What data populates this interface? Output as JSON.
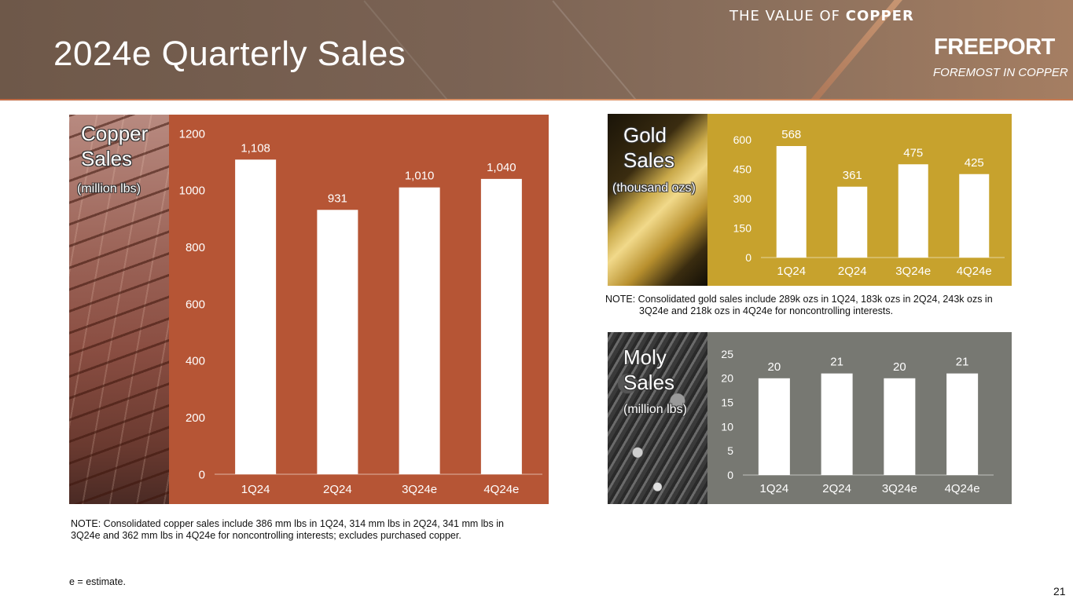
{
  "header": {
    "title": "2024e Quarterly Sales",
    "tagline_light": "THE VALUE OF ",
    "tagline_bold": "COPPER",
    "brand": "FREEPORT",
    "brand_sub": "FOREMOST IN COPPER"
  },
  "copper": {
    "label_line1": "Copper",
    "label_line2": "Sales",
    "unit": "(million lbs)",
    "note": "NOTE: Consolidated copper sales include 386 mm lbs in 1Q24, 314 mm lbs in 2Q24, 341 mm lbs in 3Q24e and 362 mm lbs in 4Q24e for noncontrolling interests; excludes purchased copper."
  },
  "gold": {
    "label_line1": "Gold",
    "label_line2": "Sales",
    "unit": "(thousand ozs)",
    "note": "NOTE: Consolidated gold sales include 289k ozs in 1Q24, 183k ozs in 2Q24, 243k ozs in 3Q24e and 218k ozs in 4Q24e for noncontrolling interests."
  },
  "moly": {
    "label_line1": "Moly",
    "label_line2": "Sales",
    "unit": "(million lbs)"
  },
  "footnote": "e = estimate.",
  "page_number": "21",
  "chart_data": [
    {
      "id": "copper",
      "type": "bar",
      "categories": [
        "1Q24",
        "2Q24",
        "3Q24e",
        "4Q24e"
      ],
      "values": [
        1108,
        931,
        1010,
        1040
      ],
      "value_labels": [
        "1,108",
        "931",
        "1,010",
        "1,040"
      ],
      "ylim": [
        0,
        1200
      ],
      "yticks": [
        0,
        200,
        400,
        600,
        800,
        1000,
        1200
      ],
      "bar_color": "#ffffff",
      "background_color": "#b65535"
    },
    {
      "id": "gold",
      "type": "bar",
      "categories": [
        "1Q24",
        "2Q24",
        "3Q24e",
        "4Q24e"
      ],
      "values": [
        568,
        361,
        475,
        425
      ],
      "value_labels": [
        "568",
        "361",
        "475",
        "425"
      ],
      "ylim": [
        0,
        600
      ],
      "yticks": [
        0,
        150,
        300,
        450,
        600
      ],
      "bar_color": "#ffffff",
      "background_color": "#c7a22d"
    },
    {
      "id": "moly",
      "type": "bar",
      "categories": [
        "1Q24",
        "2Q24",
        "3Q24e",
        "4Q24e"
      ],
      "values": [
        20,
        21,
        20,
        21
      ],
      "value_labels": [
        "20",
        "21",
        "20",
        "21"
      ],
      "ylim": [
        0,
        25
      ],
      "yticks": [
        0,
        5,
        10,
        15,
        20,
        25
      ],
      "bar_color": "#ffffff",
      "background_color": "#777872"
    }
  ]
}
